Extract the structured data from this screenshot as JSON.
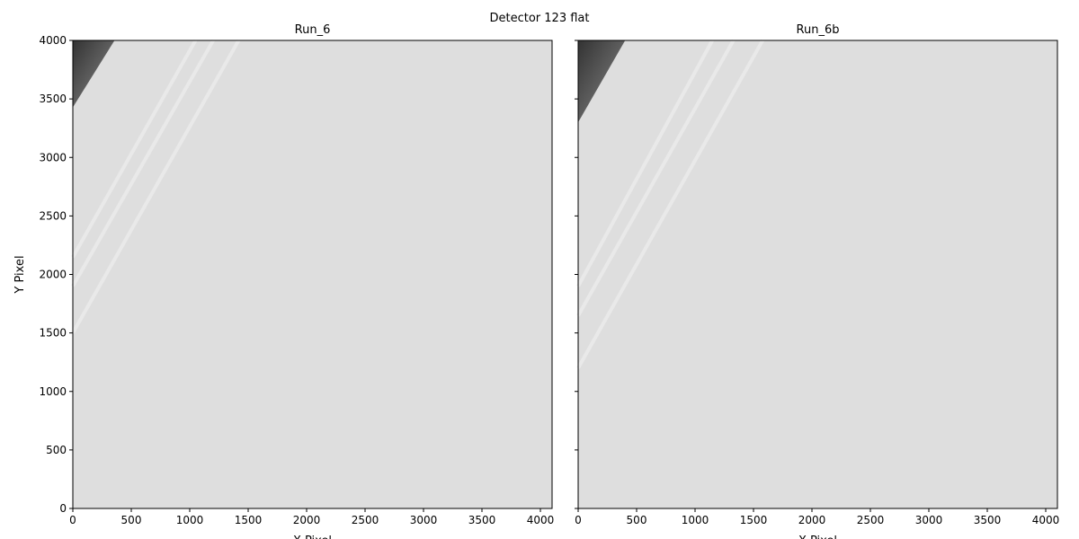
{
  "title": "Detector 123 flat",
  "chart_data": [
    {
      "type": "image",
      "title": "Run_6",
      "xlabel": "X Pixel",
      "ylabel": "Y Pixel",
      "xlim": [
        0,
        4100
      ],
      "ylim": [
        0,
        4000
      ],
      "xticks": [
        0,
        500,
        1000,
        1500,
        2000,
        2500,
        3000,
        3500,
        4000
      ],
      "yticks": [
        0,
        500,
        1000,
        1500,
        2000,
        2500,
        3000,
        3500,
        4000
      ]
    },
    {
      "type": "image",
      "title": "Run_6b",
      "xlabel": "X Pixel",
      "sharey": true,
      "xlim": [
        0,
        4100
      ],
      "ylim": [
        0,
        4000
      ],
      "xticks": [
        0,
        500,
        1000,
        1500,
        2000,
        2500,
        3000,
        3500,
        4000
      ],
      "yticks": [
        0,
        500,
        1000,
        1500,
        2000,
        2500,
        3000,
        3500,
        4000
      ]
    }
  ]
}
